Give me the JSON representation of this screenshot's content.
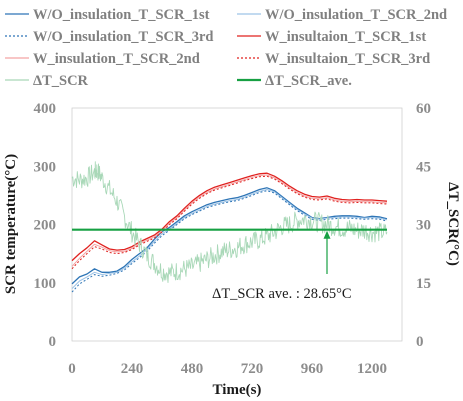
{
  "chart_data": {
    "type": "line",
    "title": "",
    "xlabel": "Time(s)",
    "ylabel": "SCR temperature(°C)",
    "y2label": "ΔT_SCR(°C)",
    "xlim": [
      0,
      1320
    ],
    "ylim": [
      0,
      400
    ],
    "y2lim": [
      0,
      60
    ],
    "xticks": [
      "0",
      "240",
      "480",
      "720",
      "960",
      "1200"
    ],
    "yticks": [
      "0",
      "100",
      "200",
      "300",
      "400"
    ],
    "y2ticks": [
      "0",
      "15",
      "30",
      "45",
      "60"
    ],
    "grid": false,
    "legend_position": "top",
    "legend": [
      "W/O_insulation_T_SCR_1st",
      "W/O_insulation_T_SCR_2nd",
      "W/O_insulation_T_SCR_3rd",
      "W_insultaion_T_SCR_1st",
      "W_insulation_T_SCR_2nd",
      "W_insultaion_T_SCR_3rd",
      "ΔT_SCR",
      "ΔT_SCR_ave."
    ],
    "series": [
      {
        "name": "W/O_insulation_T_SCR_1st",
        "axis": "left",
        "color": "#2e75b6",
        "width": 1.3,
        "dash": "",
        "x": [
          0,
          30,
          60,
          90,
          120,
          150,
          180,
          210,
          240,
          270,
          300,
          330,
          360,
          390,
          420,
          450,
          480,
          510,
          540,
          570,
          600,
          630,
          660,
          690,
          720,
          750,
          780,
          810,
          840,
          870,
          900,
          930,
          960,
          990,
          1020,
          1050,
          1080,
          1110,
          1140,
          1170,
          1200,
          1230,
          1260
        ],
        "y": [
          98,
          110,
          115,
          124,
          118,
          118,
          120,
          128,
          140,
          150,
          160,
          175,
          188,
          195,
          205,
          215,
          222,
          228,
          234,
          238,
          241,
          244,
          246,
          250,
          255,
          260,
          263,
          258,
          248,
          238,
          228,
          220,
          212,
          210,
          212,
          214,
          215,
          215,
          214,
          212,
          214,
          213,
          210
        ]
      },
      {
        "name": "W/O_insulation_T_SCR_2nd",
        "axis": "left",
        "color": "#9dc3e6",
        "width": 1.0,
        "dash": "",
        "x": [
          0,
          30,
          60,
          90,
          120,
          150,
          180,
          210,
          240,
          270,
          300,
          330,
          360,
          390,
          420,
          450,
          480,
          510,
          540,
          570,
          600,
          630,
          660,
          690,
          720,
          750,
          780,
          810,
          840,
          870,
          900,
          930,
          960,
          990,
          1020,
          1050,
          1080,
          1110,
          1140,
          1170,
          1200,
          1230,
          1260
        ],
        "y": [
          90,
          103,
          110,
          118,
          114,
          116,
          118,
          125,
          136,
          146,
          157,
          171,
          184,
          192,
          202,
          212,
          219,
          225,
          231,
          235,
          238,
          241,
          243,
          247,
          252,
          257,
          260,
          256,
          246,
          236,
          226,
          218,
          211,
          209,
          211,
          212,
          213,
          213,
          212,
          211,
          212,
          211,
          208
        ]
      },
      {
        "name": "W/O_insulation_T_SCR_3rd",
        "axis": "left",
        "color": "#2e75b6",
        "width": 1.0,
        "dash": "2 2",
        "x": [
          0,
          30,
          60,
          90,
          120,
          150,
          180,
          210,
          240,
          270,
          300,
          330,
          360,
          390,
          420,
          450,
          480,
          510,
          540,
          570,
          600,
          630,
          660,
          690,
          720,
          750,
          780,
          810,
          840,
          870,
          900,
          930,
          960,
          990,
          1020,
          1050,
          1080,
          1110,
          1140,
          1170,
          1200,
          1230,
          1260
        ],
        "y": [
          84,
          98,
          106,
          114,
          111,
          113,
          116,
          122,
          133,
          143,
          154,
          168,
          181,
          190,
          200,
          210,
          217,
          223,
          229,
          233,
          236,
          239,
          241,
          245,
          250,
          255,
          258,
          254,
          244,
          234,
          224,
          216,
          209,
          207,
          209,
          210,
          211,
          211,
          210,
          209,
          210,
          209,
          206
        ]
      },
      {
        "name": "W_insultaion_T_SCR_1st",
        "axis": "left",
        "color": "#e0211f",
        "width": 1.3,
        "dash": "",
        "x": [
          0,
          30,
          60,
          90,
          120,
          150,
          180,
          210,
          240,
          270,
          300,
          330,
          360,
          390,
          420,
          450,
          480,
          510,
          540,
          570,
          600,
          630,
          660,
          690,
          720,
          750,
          780,
          810,
          840,
          870,
          900,
          930,
          960,
          990,
          1020,
          1050,
          1080,
          1110,
          1140,
          1170,
          1200,
          1230,
          1260
        ],
        "y": [
          138,
          150,
          160,
          172,
          165,
          158,
          156,
          157,
          162,
          170,
          176,
          182,
          192,
          205,
          215,
          228,
          240,
          250,
          258,
          264,
          268,
          272,
          276,
          280,
          284,
          287,
          288,
          283,
          275,
          266,
          258,
          252,
          248,
          247,
          249,
          245,
          243,
          242,
          243,
          242,
          242,
          241,
          240
        ]
      },
      {
        "name": "W_insulation_T_SCR_2nd",
        "axis": "left",
        "color": "#f4a3a3",
        "width": 1.0,
        "dash": "",
        "x": [
          0,
          30,
          60,
          90,
          120,
          150,
          180,
          210,
          240,
          270,
          300,
          330,
          360,
          390,
          420,
          450,
          480,
          510,
          540,
          570,
          600,
          630,
          660,
          690,
          720,
          750,
          780,
          810,
          840,
          870,
          900,
          930,
          960,
          990,
          1020,
          1050,
          1080,
          1110,
          1140,
          1170,
          1200,
          1230,
          1260
        ],
        "y": [
          128,
          142,
          154,
          166,
          161,
          155,
          153,
          154,
          159,
          167,
          173,
          179,
          189,
          202,
          212,
          225,
          237,
          247,
          255,
          261,
          265,
          269,
          273,
          277,
          281,
          284,
          285,
          280,
          272,
          263,
          255,
          249,
          245,
          244,
          246,
          242,
          240,
          239,
          240,
          239,
          239,
          238,
          237
        ]
      },
      {
        "name": "W_insultaion_T_SCR_3rd",
        "axis": "left",
        "color": "#e0211f",
        "width": 1.0,
        "dash": "2 2",
        "x": [
          0,
          30,
          60,
          90,
          120,
          150,
          180,
          210,
          240,
          270,
          300,
          330,
          360,
          390,
          420,
          450,
          480,
          510,
          540,
          570,
          600,
          630,
          660,
          690,
          720,
          750,
          780,
          810,
          840,
          870,
          900,
          930,
          960,
          990,
          1020,
          1050,
          1080,
          1110,
          1140,
          1170,
          1200,
          1230,
          1260
        ],
        "y": [
          124,
          138,
          150,
          162,
          158,
          152,
          150,
          152,
          157,
          165,
          171,
          177,
          187,
          200,
          210,
          223,
          235,
          245,
          253,
          259,
          263,
          267,
          271,
          275,
          279,
          282,
          283,
          278,
          270,
          261,
          253,
          247,
          243,
          242,
          244,
          240,
          238,
          237,
          238,
          237,
          237,
          236,
          235
        ]
      },
      {
        "name": "ΔT_SCR",
        "axis": "right",
        "color": "#a9d8b8",
        "width": 0.9,
        "dash": "",
        "noise": 2.6,
        "x": [
          0,
          30,
          60,
          90,
          100,
          120,
          150,
          180,
          210,
          240,
          270,
          300,
          330,
          360,
          390,
          420,
          450,
          480,
          510,
          540,
          570,
          600,
          630,
          660,
          690,
          720,
          750,
          780,
          810,
          840,
          870,
          900,
          930,
          960,
          990,
          1020,
          1050,
          1080,
          1110,
          1140,
          1170,
          1200,
          1230,
          1260
        ],
        "y": [
          42,
          41.5,
          42,
          43.5,
          44,
          42,
          39,
          36,
          32,
          28,
          25,
          22,
          20,
          18,
          17.5,
          18,
          18.5,
          19,
          20,
          21,
          22,
          23,
          23.5,
          24,
          25,
          25.5,
          26,
          27,
          28,
          29.5,
          30,
          31,
          31.5,
          31,
          30.5,
          30,
          29.5,
          29,
          29,
          28.5,
          28.5,
          28,
          28,
          28
        ]
      },
      {
        "name": "ΔT_SCR_ave.",
        "axis": "right",
        "color": "#17a043",
        "width": 2.2,
        "dash": "",
        "x": [
          0,
          1260
        ],
        "y": [
          28.65,
          28.65
        ]
      }
    ],
    "annotation": {
      "text": "ΔT_SCR ave. : 28.65°C",
      "arrow_x": 1020,
      "arrow_y": 28.65
    }
  }
}
